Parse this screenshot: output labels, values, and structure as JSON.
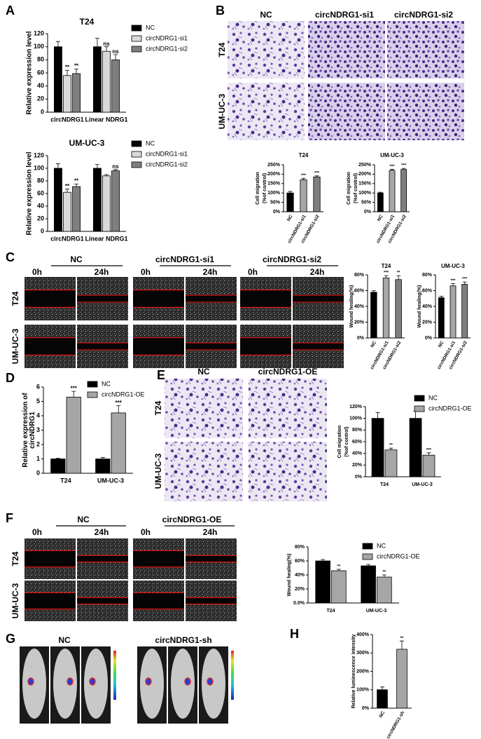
{
  "figure": {
    "panel_labels": [
      "A",
      "B",
      "C",
      "D",
      "E",
      "F",
      "G",
      "H"
    ],
    "conditions_si": [
      "NC",
      "circNDRG1-si1",
      "circNDRG1-si2"
    ],
    "conditions_oe": [
      "NC",
      "circNDRG1-OE"
    ],
    "conditions_sh": [
      "NC",
      "circNDRG1-sh"
    ],
    "cell_lines": [
      "T24",
      "UM-UC-3"
    ],
    "times": [
      "0h",
      "24h"
    ]
  },
  "chart_data": [
    {
      "type": "bar",
      "title": "T24",
      "ylabel": [
        "Relative expression level"
      ],
      "categories": [
        "circNDRG1",
        "Linear NDRG1"
      ],
      "ylim": [
        0,
        120
      ],
      "yticks": [
        0,
        20,
        40,
        60,
        80,
        100,
        120
      ],
      "series": [
        {
          "name": "NC",
          "color": "#000000",
          "values": [
            100,
            100
          ],
          "errors": [
            8,
            13
          ],
          "significance": [
            null,
            null
          ]
        },
        {
          "name": "circNDRG1-si1",
          "color": "#d9d9d9",
          "values": [
            56,
            93
          ],
          "errors": [
            8,
            7
          ],
          "significance": [
            "**",
            "ns"
          ]
        },
        {
          "name": "circNDRG1-si2",
          "color": "#7f7f7f",
          "values": [
            59,
            80
          ],
          "errors": [
            7,
            8
          ],
          "significance": [
            "**",
            "ns"
          ]
        }
      ]
    },
    {
      "type": "bar",
      "title": "UM-UC-3",
      "ylabel": [
        "Relative expression level"
      ],
      "categories": [
        "circNDRG1",
        "Linear NDRG1"
      ],
      "ylim": [
        0,
        120
      ],
      "yticks": [
        0,
        20,
        40,
        60,
        80,
        100,
        120
      ],
      "series": [
        {
          "name": "NC",
          "color": "#000000",
          "values": [
            100,
            100
          ],
          "errors": [
            7,
            6
          ],
          "significance": [
            null,
            null
          ]
        },
        {
          "name": "circNDRG1-si1",
          "color": "#d9d9d9",
          "values": [
            62,
            88
          ],
          "errors": [
            5,
            2
          ],
          "significance": [
            "**",
            null
          ]
        },
        {
          "name": "circNDRG1-si2",
          "color": "#7f7f7f",
          "values": [
            71,
            96
          ],
          "errors": [
            4,
            2
          ],
          "significance": [
            "**",
            "ns"
          ]
        }
      ]
    },
    {
      "type": "bar",
      "title": "T24",
      "ylabel": [
        "Cell migration",
        "(%of control)"
      ],
      "categories": [
        "NC",
        "circNDRG1-si1",
        "circNDRG1-si2"
      ],
      "ylim": [
        0,
        250
      ],
      "yticks": [
        {
          "value": 0,
          "label": "0%"
        },
        {
          "value": 50,
          "label": "50%"
        },
        {
          "value": 100,
          "label": "100%"
        },
        {
          "value": 150,
          "label": "150%"
        },
        {
          "value": 200,
          "label": "200%"
        },
        {
          "value": 250,
          "label": "250%"
        }
      ],
      "series": [
        {
          "colors": [
            "#000000",
            "#a6a6a6",
            "#7f7f7f"
          ],
          "values": [
            100,
            170,
            185
          ],
          "errors": [
            8,
            8,
            6
          ],
          "significance": [
            null,
            "***",
            "***"
          ]
        }
      ]
    },
    {
      "type": "bar",
      "title": "UM-UC-3",
      "ylabel": [
        "Cell migration",
        "(%of control)"
      ],
      "categories": [
        "NC",
        "circNDRG1-si1",
        "circNDRG1-si2"
      ],
      "ylim": [
        0,
        250
      ],
      "yticks": [
        {
          "value": 0,
          "label": "0%"
        },
        {
          "value": 50,
          "label": "50%"
        },
        {
          "value": 100,
          "label": "100%"
        },
        {
          "value": 150,
          "label": "150%"
        },
        {
          "value": 200,
          "label": "200%"
        },
        {
          "value": 250,
          "label": "250%"
        }
      ],
      "series": [
        {
          "colors": [
            "#000000",
            "#a6a6a6",
            "#7f7f7f"
          ],
          "values": [
            100,
            220,
            225
          ],
          "errors": [
            4,
            6,
            6
          ],
          "significance": [
            null,
            "***",
            "***"
          ]
        }
      ]
    },
    {
      "type": "bar",
      "title": "T24",
      "ylabel": [
        "Wound healing(%)"
      ],
      "categories": [
        "NC",
        "circNDRG1-si1",
        "circNDRG1-si2"
      ],
      "ylim": [
        0,
        80
      ],
      "yticks": [
        {
          "value": 0,
          "label": "0%"
        },
        {
          "value": 20,
          "label": "20%"
        },
        {
          "value": 40,
          "label": "40%"
        },
        {
          "value": 60,
          "label": "60%"
        },
        {
          "value": 80,
          "label": "80%"
        }
      ],
      "series": [
        {
          "colors": [
            "#000000",
            "#a6a6a6",
            "#7f7f7f"
          ],
          "values": [
            58,
            76,
            74
          ],
          "errors": [
            2,
            3,
            5
          ],
          "significance": [
            null,
            "***",
            "**"
          ]
        }
      ]
    },
    {
      "type": "bar",
      "title": "UM-UC-3",
      "ylabel": [
        "Wound healing(%)"
      ],
      "categories": [
        "NC",
        "circNDRG1-si1",
        "circNDRG1-si2"
      ],
      "ylim": [
        0,
        80
      ],
      "yticks": [
        {
          "value": 0,
          "label": "0%"
        },
        {
          "value": 20,
          "label": "20%"
        },
        {
          "value": 40,
          "label": "40%"
        },
        {
          "value": 60,
          "label": "60%"
        },
        {
          "value": 80,
          "label": "80%"
        }
      ],
      "series": [
        {
          "colors": [
            "#000000",
            "#a6a6a6",
            "#7f7f7f"
          ],
          "values": [
            51,
            66,
            68
          ],
          "errors": [
            2,
            3,
            3
          ],
          "significance": [
            null,
            "***",
            "***"
          ]
        }
      ]
    },
    {
      "type": "bar",
      "ylabel": [
        "Relative expression of",
        "circNDRG1"
      ],
      "categories": [
        "T24",
        "UM-UC-3"
      ],
      "ylim": [
        0,
        6
      ],
      "yticks": [
        0,
        1,
        2,
        3,
        4,
        5,
        6
      ],
      "series": [
        {
          "name": "NC",
          "color": "#000000",
          "values": [
            1,
            1
          ],
          "errors": [
            0.05,
            0.1
          ],
          "significance": [
            null,
            null
          ]
        },
        {
          "name": "circNDRG1-OE",
          "color": "#a6a6a6",
          "values": [
            5.3,
            4.2
          ],
          "errors": [
            0.4,
            0.5
          ],
          "significance": [
            "***",
            "***"
          ]
        }
      ]
    },
    {
      "type": "bar",
      "ylabel": [
        "Cell migration",
        "(%of control)"
      ],
      "categories": [
        "T24",
        "UM-UC-3"
      ],
      "ylim": [
        0,
        120
      ],
      "yticks": [
        {
          "value": 0,
          "label": "0%"
        },
        {
          "value": 20,
          "label": "20%"
        },
        {
          "value": 40,
          "label": "40%"
        },
        {
          "value": 60,
          "label": "60%"
        },
        {
          "value": 80,
          "label": "80%"
        },
        {
          "value": 100,
          "label": "100%"
        },
        {
          "value": 120,
          "label": "120%"
        }
      ],
      "series": [
        {
          "name": "NC",
          "color": "#000000",
          "values": [
            100,
            100
          ],
          "errors": [
            10,
            12
          ],
          "significance": [
            null,
            null
          ]
        },
        {
          "name": "circNDRG1-OE",
          "color": "#a6a6a6",
          "values": [
            46,
            37
          ],
          "errors": [
            3,
            4
          ],
          "significance": [
            "**",
            "***"
          ]
        }
      ]
    },
    {
      "type": "bar",
      "ylabel": [
        "Wound healing(%)"
      ],
      "categories": [
        "T24",
        "UM-UC-3"
      ],
      "ylim": [
        0,
        80
      ],
      "yticks": [
        {
          "value": 0,
          "label": "0.0%"
        },
        {
          "value": 20,
          "label": "20%"
        },
        {
          "value": 40,
          "label": "40%"
        },
        {
          "value": 60,
          "label": "60%"
        },
        {
          "value": 80,
          "label": "80%"
        }
      ],
      "series": [
        {
          "name": "NC",
          "color": "#000000",
          "values": [
            60,
            53
          ],
          "errors": [
            2,
            2
          ],
          "significance": [
            null,
            null
          ]
        },
        {
          "name": "circNDRG1-OE",
          "color": "#a6a6a6",
          "values": [
            46,
            37
          ],
          "errors": [
            2,
            3
          ],
          "significance": [
            "**",
            "**"
          ]
        }
      ]
    },
    {
      "type": "bar",
      "ylabel": [
        "Relative luminescence intensity"
      ],
      "categories": [
        "NC",
        "circNDRG1-sh"
      ],
      "ylim": [
        0,
        400
      ],
      "yticks": [
        {
          "value": 0,
          "label": "0%"
        },
        {
          "value": 100,
          "label": "100%"
        },
        {
          "value": 200,
          "label": "200%"
        },
        {
          "value": 300,
          "label": "300%"
        },
        {
          "value": 400,
          "label": "400%"
        }
      ],
      "series": [
        {
          "colors": [
            "#000000",
            "#a6a6a6"
          ],
          "values": [
            100,
            320
          ],
          "errors": [
            15,
            45
          ],
          "significance": [
            null,
            "**"
          ]
        }
      ]
    }
  ]
}
